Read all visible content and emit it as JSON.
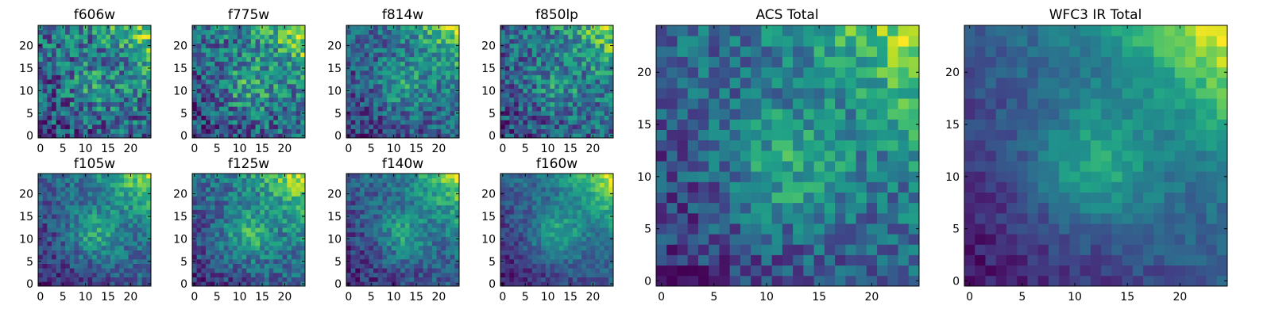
{
  "figure_title": "",
  "chart_data": [
    {
      "type": "heatmap",
      "title": "f606w",
      "colormap": "viridis",
      "grid_size": 25,
      "xlim": [
        0,
        24
      ],
      "ylim": [
        0,
        24
      ],
      "xticks": [
        0,
        5,
        10,
        15,
        20
      ],
      "yticks": [
        0,
        5,
        10,
        15,
        20
      ],
      "noise": 0.34,
      "gradient": 0.55,
      "blob": 0.2,
      "seed": 11
    },
    {
      "type": "heatmap",
      "title": "f775w",
      "colormap": "viridis",
      "grid_size": 25,
      "xlim": [
        0,
        24
      ],
      "ylim": [
        0,
        24
      ],
      "xticks": [
        0,
        5,
        10,
        15,
        20
      ],
      "yticks": [
        0,
        5,
        10,
        15,
        20
      ],
      "noise": 0.28,
      "gradient": 0.7,
      "blob": 0.25,
      "seed": 23
    },
    {
      "type": "heatmap",
      "title": "f814w",
      "colormap": "viridis",
      "grid_size": 25,
      "xlim": [
        0,
        24
      ],
      "ylim": [
        0,
        24
      ],
      "xticks": [
        0,
        5,
        10,
        15,
        20
      ],
      "yticks": [
        0,
        5,
        10,
        15,
        20
      ],
      "noise": 0.24,
      "gradient": 0.8,
      "blob": 0.25,
      "seed": 37
    },
    {
      "type": "heatmap",
      "title": "f850lp",
      "colormap": "viridis",
      "grid_size": 25,
      "xlim": [
        0,
        24
      ],
      "ylim": [
        0,
        24
      ],
      "xticks": [
        0,
        5,
        10,
        15,
        20
      ],
      "yticks": [
        0,
        5,
        10,
        15,
        20
      ],
      "noise": 0.3,
      "gradient": 0.7,
      "blob": 0.2,
      "seed": 41
    },
    {
      "type": "heatmap",
      "title": "f105w",
      "colormap": "viridis",
      "grid_size": 25,
      "xlim": [
        0,
        24
      ],
      "ylim": [
        0,
        24
      ],
      "xticks": [
        0,
        5,
        10,
        15,
        20
      ],
      "yticks": [
        0,
        5,
        10,
        15,
        20
      ],
      "noise": 0.17,
      "gradient": 0.85,
      "blob": 0.3,
      "seed": 53
    },
    {
      "type": "heatmap",
      "title": "f125w",
      "colormap": "viridis",
      "grid_size": 25,
      "xlim": [
        0,
        24
      ],
      "ylim": [
        0,
        24
      ],
      "xticks": [
        0,
        5,
        10,
        15,
        20
      ],
      "yticks": [
        0,
        5,
        10,
        15,
        20
      ],
      "noise": 0.18,
      "gradient": 0.85,
      "blob": 0.3,
      "seed": 67
    },
    {
      "type": "heatmap",
      "title": "f140w",
      "colormap": "viridis",
      "grid_size": 25,
      "xlim": [
        0,
        24
      ],
      "ylim": [
        0,
        24
      ],
      "xticks": [
        0,
        5,
        10,
        15,
        20
      ],
      "yticks": [
        0,
        5,
        10,
        15,
        20
      ],
      "noise": 0.17,
      "gradient": 0.9,
      "blob": 0.3,
      "seed": 71
    },
    {
      "type": "heatmap",
      "title": "f160w",
      "colormap": "viridis",
      "grid_size": 25,
      "xlim": [
        0,
        24
      ],
      "ylim": [
        0,
        24
      ],
      "xticks": [
        0,
        5,
        10,
        15,
        20
      ],
      "yticks": [
        0,
        5,
        10,
        15,
        20
      ],
      "noise": 0.12,
      "gradient": 1.0,
      "blob": 0.3,
      "seed": 83
    },
    {
      "type": "heatmap",
      "title": "ACS Total",
      "colormap": "viridis",
      "grid_size": 25,
      "xlim": [
        0,
        24
      ],
      "ylim": [
        0,
        24
      ],
      "xticks": [
        0,
        5,
        10,
        15,
        20
      ],
      "yticks": [
        0,
        5,
        10,
        15,
        20
      ],
      "noise": 0.2,
      "gradient": 0.85,
      "blob": 0.3,
      "seed": 97
    },
    {
      "type": "heatmap",
      "title": "WFC3 IR Total",
      "colormap": "viridis",
      "grid_size": 25,
      "xlim": [
        0,
        24
      ],
      "ylim": [
        0,
        24
      ],
      "xticks": [
        0,
        5,
        10,
        15,
        20
      ],
      "yticks": [
        0,
        5,
        10,
        15,
        20
      ],
      "noise": 0.08,
      "gradient": 1.0,
      "blob": 0.3,
      "seed": 101
    }
  ]
}
